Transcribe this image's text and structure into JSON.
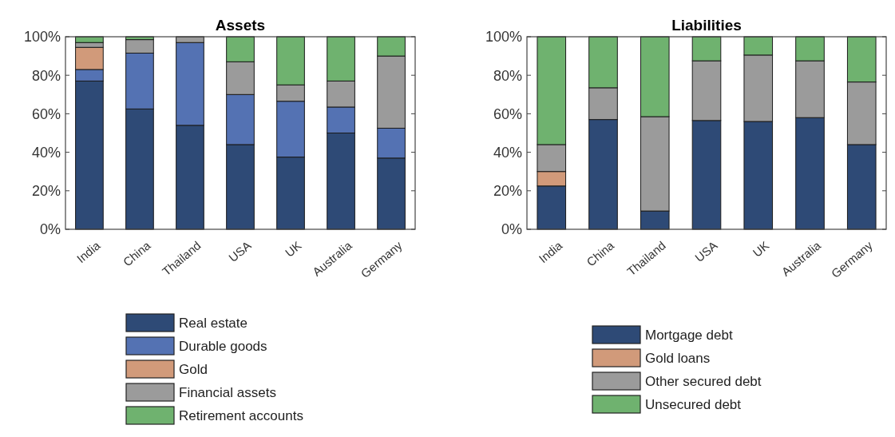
{
  "chart_data": [
    {
      "type": "bar",
      "title": "Assets",
      "stacked": true,
      "categories": [
        "India",
        "China",
        "Thailand",
        "USA",
        "UK",
        "Australia",
        "Germany"
      ],
      "ylim": [
        0,
        100
      ],
      "yticks": [
        {
          "value": 0,
          "label": "0%"
        },
        {
          "value": 20,
          "label": "20%"
        },
        {
          "value": 40,
          "label": "40%"
        },
        {
          "value": 60,
          "label": "60%"
        },
        {
          "value": 80,
          "label": "80%"
        },
        {
          "value": 100,
          "label": "100%"
        }
      ],
      "legend": "bottom",
      "grid": false,
      "series": [
        {
          "name": "Real estate",
          "color": "#2e4a76",
          "values": [
            77,
            62.5,
            54,
            44,
            37.5,
            50,
            37
          ]
        },
        {
          "name": "Durable goods",
          "color": "#5472b3",
          "values": [
            6,
            29,
            43,
            26,
            29,
            13.5,
            15.5
          ]
        },
        {
          "name": "Gold",
          "color": "#d19a7a",
          "values": [
            11.5,
            0,
            0,
            0,
            0,
            0,
            0
          ]
        },
        {
          "name": "Financial assets",
          "color": "#9b9b9b",
          "values": [
            2.5,
            7,
            3,
            17,
            8.5,
            13.5,
            37.5
          ]
        },
        {
          "name": "Retirement accounts",
          "color": "#6fb26f",
          "values": [
            3,
            1.5,
            0,
            13,
            25,
            23,
            10
          ]
        }
      ]
    },
    {
      "type": "bar",
      "title": "Liabilities",
      "stacked": true,
      "categories": [
        "India",
        "China",
        "Thailand",
        "USA",
        "UK",
        "Australia",
        "Germany"
      ],
      "ylim": [
        0,
        100
      ],
      "yticks": [
        {
          "value": 0,
          "label": "0%"
        },
        {
          "value": 20,
          "label": "20%"
        },
        {
          "value": 40,
          "label": "40%"
        },
        {
          "value": 60,
          "label": "60%"
        },
        {
          "value": 80,
          "label": "80%"
        },
        {
          "value": 100,
          "label": "100%"
        }
      ],
      "legend": "bottom",
      "grid": false,
      "series": [
        {
          "name": "Mortgage debt",
          "color": "#2e4a76",
          "values": [
            22.5,
            57,
            9.5,
            56.5,
            56,
            58,
            44
          ]
        },
        {
          "name": "Gold loans",
          "color": "#d19a7a",
          "values": [
            7.5,
            0,
            0,
            0,
            0,
            0,
            0
          ]
        },
        {
          "name": "Other secured debt",
          "color": "#9b9b9b",
          "values": [
            14,
            16.5,
            49,
            31,
            34.5,
            29.5,
            32.5
          ]
        },
        {
          "name": "Unsecured debt",
          "color": "#6fb26f",
          "values": [
            56,
            26.5,
            41.5,
            12.5,
            9.5,
            12.5,
            23.5
          ]
        }
      ]
    }
  ]
}
